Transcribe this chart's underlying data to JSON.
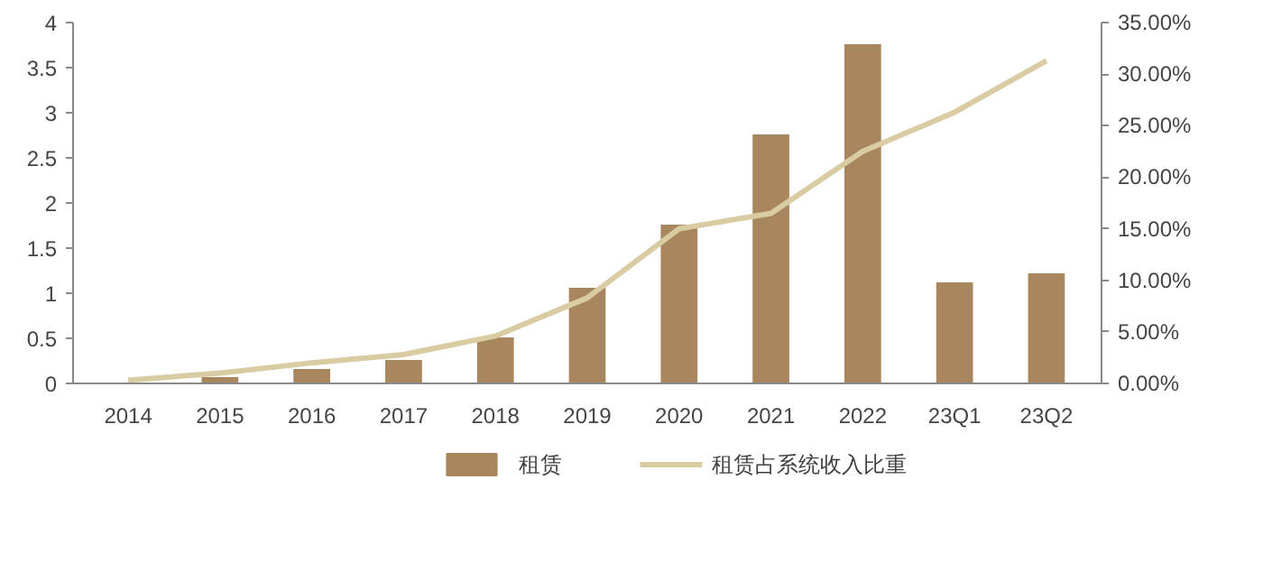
{
  "chart_data": {
    "type": "bar",
    "categories": [
      "2014",
      "2015",
      "2016",
      "2017",
      "2018",
      "2019",
      "2020",
      "2021",
      "2022",
      "23Q1",
      "23Q2"
    ],
    "series": [
      {
        "name": "租赁",
        "color": "#a8865e",
        "values": [
          0.01,
          0.07,
          0.16,
          0.26,
          0.51,
          1.06,
          1.76,
          2.76,
          3.76,
          1.12,
          1.22
        ]
      },
      {
        "name": "租赁占系统收入比重",
        "type": "line",
        "axis": "y2",
        "color": "#d9cca3",
        "values": [
          0.3,
          1.0,
          2.0,
          2.8,
          4.6,
          8.3,
          15.0,
          16.5,
          22.5,
          26.3,
          31.3
        ]
      }
    ],
    "ylim": [
      0,
      4
    ],
    "yticks": [
      0,
      0.5,
      1,
      1.5,
      2,
      2.5,
      3,
      3.5,
      4
    ],
    "y2lim": [
      0,
      35
    ],
    "y2ticks": [
      {
        "value": 0,
        "label": "0.00%"
      },
      {
        "value": 5,
        "label": "5.00%"
      },
      {
        "value": 10,
        "label": "10.00%"
      },
      {
        "value": 15,
        "label": "15.00%"
      },
      {
        "value": 20,
        "label": "20.00%"
      },
      {
        "value": 25,
        "label": "25.00%"
      },
      {
        "value": 30,
        "label": "30.00%"
      },
      {
        "value": 35,
        "label": "35.00%"
      }
    ],
    "grid": false,
    "legend": "bottom",
    "marker": "none",
    "line_style": "solid"
  }
}
